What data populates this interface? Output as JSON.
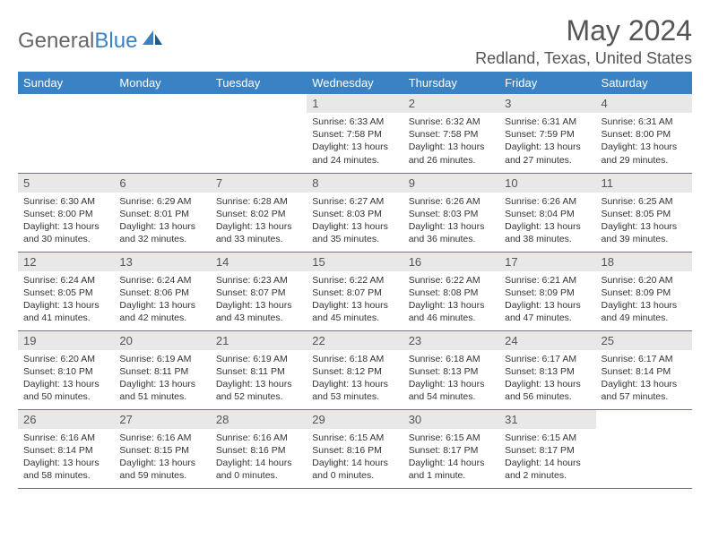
{
  "logo": {
    "text_gray": "General",
    "text_blue": "Blue"
  },
  "title": "May 2024",
  "location": "Redland, Texas, United States",
  "header_bg": "#3b82c4",
  "day_headers": [
    "Sunday",
    "Monday",
    "Tuesday",
    "Wednesday",
    "Thursday",
    "Friday",
    "Saturday"
  ],
  "weeks": [
    [
      null,
      null,
      null,
      {
        "n": "1",
        "sunrise": "6:33 AM",
        "sunset": "7:58 PM",
        "day": "13 hours and 24 minutes."
      },
      {
        "n": "2",
        "sunrise": "6:32 AM",
        "sunset": "7:58 PM",
        "day": "13 hours and 26 minutes."
      },
      {
        "n": "3",
        "sunrise": "6:31 AM",
        "sunset": "7:59 PM",
        "day": "13 hours and 27 minutes."
      },
      {
        "n": "4",
        "sunrise": "6:31 AM",
        "sunset": "8:00 PM",
        "day": "13 hours and 29 minutes."
      }
    ],
    [
      {
        "n": "5",
        "sunrise": "6:30 AM",
        "sunset": "8:00 PM",
        "day": "13 hours and 30 minutes."
      },
      {
        "n": "6",
        "sunrise": "6:29 AM",
        "sunset": "8:01 PM",
        "day": "13 hours and 32 minutes."
      },
      {
        "n": "7",
        "sunrise": "6:28 AM",
        "sunset": "8:02 PM",
        "day": "13 hours and 33 minutes."
      },
      {
        "n": "8",
        "sunrise": "6:27 AM",
        "sunset": "8:03 PM",
        "day": "13 hours and 35 minutes."
      },
      {
        "n": "9",
        "sunrise": "6:26 AM",
        "sunset": "8:03 PM",
        "day": "13 hours and 36 minutes."
      },
      {
        "n": "10",
        "sunrise": "6:26 AM",
        "sunset": "8:04 PM",
        "day": "13 hours and 38 minutes."
      },
      {
        "n": "11",
        "sunrise": "6:25 AM",
        "sunset": "8:05 PM",
        "day": "13 hours and 39 minutes."
      }
    ],
    [
      {
        "n": "12",
        "sunrise": "6:24 AM",
        "sunset": "8:05 PM",
        "day": "13 hours and 41 minutes."
      },
      {
        "n": "13",
        "sunrise": "6:24 AM",
        "sunset": "8:06 PM",
        "day": "13 hours and 42 minutes."
      },
      {
        "n": "14",
        "sunrise": "6:23 AM",
        "sunset": "8:07 PM",
        "day": "13 hours and 43 minutes."
      },
      {
        "n": "15",
        "sunrise": "6:22 AM",
        "sunset": "8:07 PM",
        "day": "13 hours and 45 minutes."
      },
      {
        "n": "16",
        "sunrise": "6:22 AM",
        "sunset": "8:08 PM",
        "day": "13 hours and 46 minutes."
      },
      {
        "n": "17",
        "sunrise": "6:21 AM",
        "sunset": "8:09 PM",
        "day": "13 hours and 47 minutes."
      },
      {
        "n": "18",
        "sunrise": "6:20 AM",
        "sunset": "8:09 PM",
        "day": "13 hours and 49 minutes."
      }
    ],
    [
      {
        "n": "19",
        "sunrise": "6:20 AM",
        "sunset": "8:10 PM",
        "day": "13 hours and 50 minutes."
      },
      {
        "n": "20",
        "sunrise": "6:19 AM",
        "sunset": "8:11 PM",
        "day": "13 hours and 51 minutes."
      },
      {
        "n": "21",
        "sunrise": "6:19 AM",
        "sunset": "8:11 PM",
        "day": "13 hours and 52 minutes."
      },
      {
        "n": "22",
        "sunrise": "6:18 AM",
        "sunset": "8:12 PM",
        "day": "13 hours and 53 minutes."
      },
      {
        "n": "23",
        "sunrise": "6:18 AM",
        "sunset": "8:13 PM",
        "day": "13 hours and 54 minutes."
      },
      {
        "n": "24",
        "sunrise": "6:17 AM",
        "sunset": "8:13 PM",
        "day": "13 hours and 56 minutes."
      },
      {
        "n": "25",
        "sunrise": "6:17 AM",
        "sunset": "8:14 PM",
        "day": "13 hours and 57 minutes."
      }
    ],
    [
      {
        "n": "26",
        "sunrise": "6:16 AM",
        "sunset": "8:14 PM",
        "day": "13 hours and 58 minutes."
      },
      {
        "n": "27",
        "sunrise": "6:16 AM",
        "sunset": "8:15 PM",
        "day": "13 hours and 59 minutes."
      },
      {
        "n": "28",
        "sunrise": "6:16 AM",
        "sunset": "8:16 PM",
        "day": "14 hours and 0 minutes."
      },
      {
        "n": "29",
        "sunrise": "6:15 AM",
        "sunset": "8:16 PM",
        "day": "14 hours and 0 minutes."
      },
      {
        "n": "30",
        "sunrise": "6:15 AM",
        "sunset": "8:17 PM",
        "day": "14 hours and 1 minute."
      },
      {
        "n": "31",
        "sunrise": "6:15 AM",
        "sunset": "8:17 PM",
        "day": "14 hours and 2 minutes."
      },
      null
    ]
  ]
}
